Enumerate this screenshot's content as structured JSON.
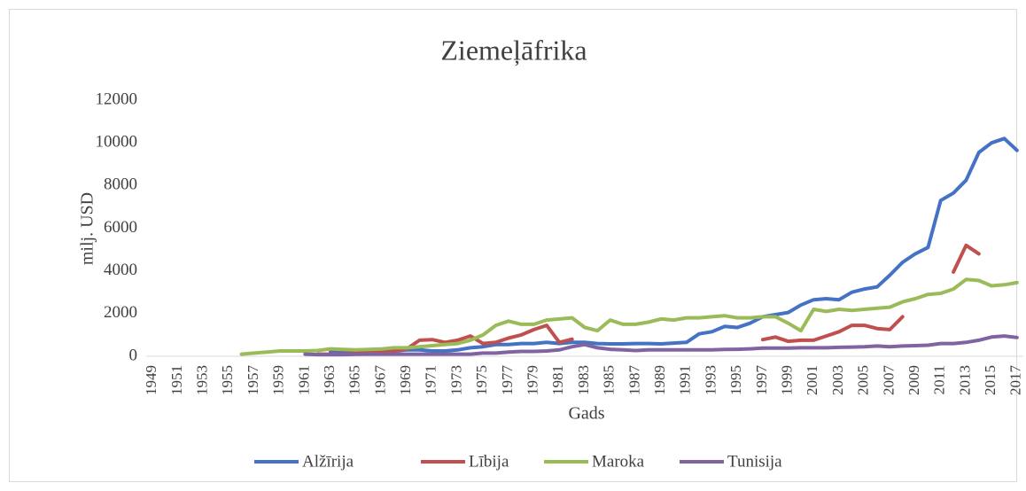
{
  "chart_data": {
    "type": "line",
    "title": "Ziemeļāfrika",
    "x_label": "Gads",
    "y_label": "milj. USD",
    "categories": [
      "1949",
      null,
      "1951",
      null,
      "1953",
      null,
      "1955",
      null,
      "1957",
      null,
      "1959",
      null,
      "1961",
      null,
      "1963",
      null,
      "1965",
      null,
      "1967",
      null,
      "1969",
      null,
      "1971",
      null,
      "1973",
      null,
      "1975",
      null,
      "1977",
      null,
      "1979",
      null,
      "1981",
      null,
      "1983",
      null,
      "1985",
      null,
      "1987",
      null,
      "1989",
      null,
      "1991",
      null,
      "1993",
      null,
      "1995",
      null,
      "1997",
      null,
      "1999",
      null,
      "2001",
      null,
      "2003",
      null,
      "2005",
      null,
      "2007",
      null,
      "2009",
      null,
      "2011",
      null,
      "2013",
      null,
      "2015",
      null,
      "2017"
    ],
    "series": [
      {
        "name": "Alžīrija",
        "color": "#4472c4",
        "values": [
          null,
          null,
          null,
          null,
          null,
          null,
          null,
          null,
          null,
          null,
          null,
          null,
          null,
          null,
          200,
          200,
          200,
          200,
          200,
          250,
          300,
          300,
          250,
          250,
          300,
          400,
          450,
          550,
          550,
          600,
          600,
          650,
          600,
          650,
          650,
          600,
          580,
          580,
          600,
          600,
          580,
          620,
          650,
          1050,
          1150,
          1400,
          1350,
          1550,
          1850,
          1950,
          2050,
          2400,
          2650,
          2700,
          2650,
          3000,
          3150,
          3250,
          3800,
          4400,
          4800,
          5100,
          7300,
          7650,
          8250,
          9550,
          10000,
          10200,
          9650
        ]
      },
      {
        "name": "Lībija",
        "color": "#c0504d",
        "values": [
          null,
          null,
          null,
          null,
          null,
          null,
          null,
          null,
          null,
          null,
          null,
          null,
          null,
          100,
          100,
          100,
          150,
          150,
          200,
          250,
          350,
          750,
          780,
          650,
          750,
          950,
          600,
          650,
          850,
          1000,
          1250,
          1450,
          650,
          800,
          null,
          null,
          null,
          null,
          null,
          null,
          null,
          null,
          null,
          null,
          null,
          null,
          null,
          null,
          780,
          900,
          700,
          750,
          750,
          950,
          1150,
          1450,
          1450,
          1300,
          1250,
          1850,
          null,
          null,
          null,
          3950,
          5200,
          4800,
          null,
          null,
          null
        ]
      },
      {
        "name": "Maroka",
        "color": "#9bbb59",
        "values": [
          null,
          null,
          null,
          null,
          null,
          null,
          null,
          100,
          150,
          200,
          250,
          250,
          250,
          270,
          350,
          320,
          300,
          320,
          340,
          400,
          400,
          450,
          500,
          550,
          600,
          750,
          1000,
          1450,
          1650,
          1500,
          1500,
          1700,
          1750,
          1800,
          1350,
          1200,
          1700,
          1500,
          1500,
          1600,
          1750,
          1700,
          1800,
          1800,
          1850,
          1900,
          1800,
          1800,
          1850,
          1850,
          1550,
          1200,
          2200,
          2100,
          2200,
          2150,
          2200,
          2250,
          2300,
          2550,
          2700,
          2900,
          2950,
          3150,
          3600,
          3550,
          3300,
          3350,
          3450
        ]
      },
      {
        "name": "Tunisija",
        "color": "#8064a2",
        "values": [
          null,
          null,
          null,
          null,
          null,
          null,
          null,
          null,
          null,
          null,
          null,
          null,
          100,
          80,
          80,
          80,
          90,
          100,
          100,
          100,
          100,
          100,
          100,
          100,
          100,
          100,
          150,
          150,
          200,
          230,
          230,
          250,
          300,
          450,
          550,
          400,
          330,
          300,
          270,
          300,
          300,
          300,
          300,
          300,
          300,
          320,
          330,
          350,
          380,
          380,
          380,
          400,
          400,
          400,
          420,
          430,
          450,
          480,
          450,
          480,
          500,
          520,
          600,
          600,
          650,
          750,
          900,
          950,
          880
        ]
      }
    ],
    "ylim": [
      0,
      12000
    ],
    "yticks": [
      0,
      2000,
      4000,
      6000,
      8000,
      10000,
      12000
    ],
    "grid": false,
    "legend": "bottom"
  }
}
